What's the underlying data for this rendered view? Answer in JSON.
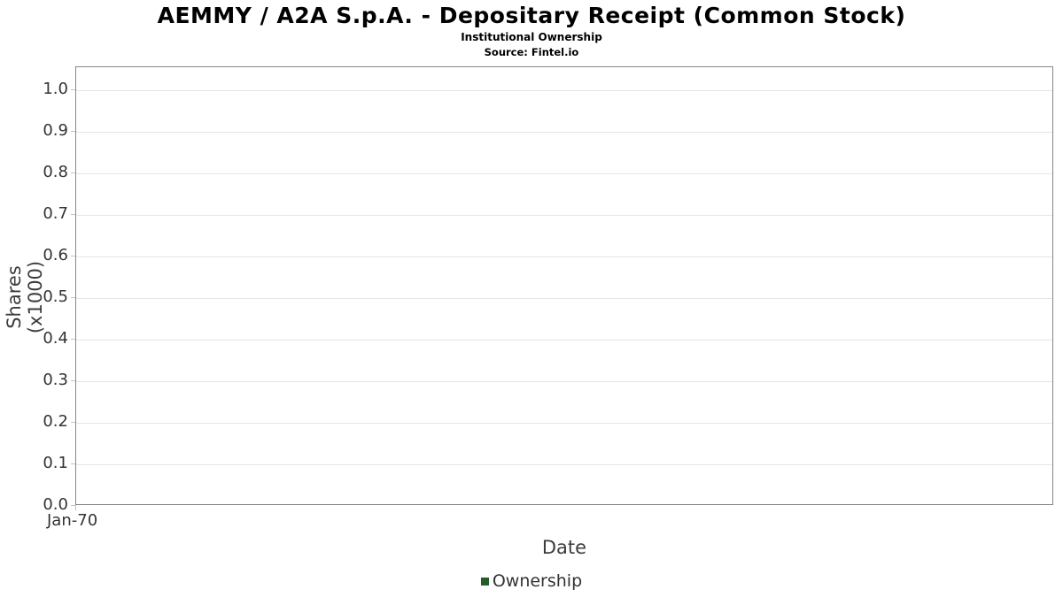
{
  "header": {
    "title": "AEMMY / A2A S.p.A. - Depositary Receipt (Common Stock)",
    "subtitle": "Institutional Ownership",
    "source": "Source: Fintel.io"
  },
  "chart_data": {
    "type": "line",
    "title": "AEMMY / A2A S.p.A. - Depositary Receipt (Common Stock)",
    "subtitle": "Institutional Ownership",
    "source": "Source: Fintel.io",
    "xlabel": "Date",
    "ylabel": "Shares (x1000)",
    "x_ticks": [
      "Jan-70"
    ],
    "y_tick_labels": [
      "0.0",
      "0.1",
      "0.2",
      "0.3",
      "0.4",
      "0.5",
      "0.6",
      "0.7",
      "0.8",
      "0.9",
      "1.0"
    ],
    "y_tick_values": [
      0.0,
      0.1,
      0.2,
      0.3,
      0.4,
      0.5,
      0.6,
      0.7,
      0.8,
      0.9,
      1.0
    ],
    "ylim": [
      0,
      1.055
    ],
    "grid": true,
    "legend_position": "bottom",
    "series": [
      {
        "name": "Ownership",
        "color": "#245c2e",
        "x": [],
        "values": []
      }
    ]
  },
  "legend": {
    "label": "Ownership",
    "marker_color": "#245c2e"
  }
}
